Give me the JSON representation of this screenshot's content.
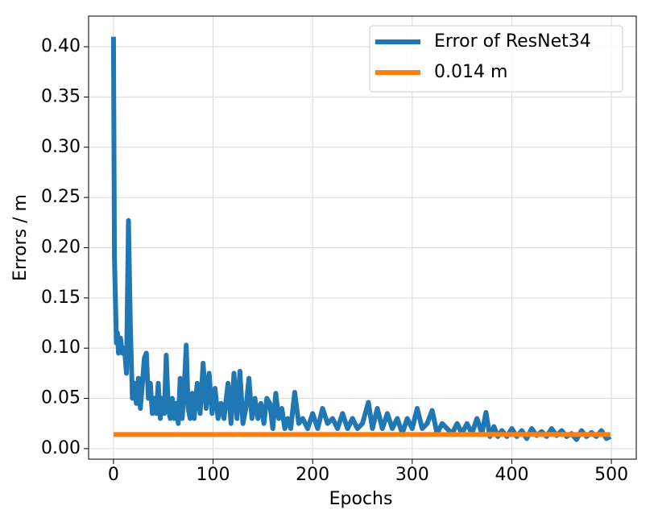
{
  "chart_data": {
    "type": "line",
    "xlabel": "Epochs",
    "ylabel": "Errors / m",
    "xlim": [
      -25,
      525
    ],
    "ylim": [
      -0.0105,
      0.4305
    ],
    "xticks": [
      0,
      100,
      200,
      300,
      400,
      500
    ],
    "yticks": [
      {
        "value": 0,
        "label": "0.00"
      },
      {
        "value": 0.05,
        "label": "0.05"
      },
      {
        "value": 0.1,
        "label": "0.10"
      },
      {
        "value": 0.15,
        "label": "0.15"
      },
      {
        "value": 0.2,
        "label": "0.20"
      },
      {
        "value": 0.25,
        "label": "0.25"
      },
      {
        "value": 0.3,
        "label": "0.30"
      },
      {
        "value": 0.35,
        "label": "0.35"
      },
      {
        "value": 0.4,
        "label": "0.40"
      }
    ],
    "grid": true,
    "legend": "upper right",
    "series": [
      {
        "name": "Error of ResNet34",
        "color": "#1f77b4",
        "x": [
          0,
          1,
          3,
          4,
          5,
          7,
          9,
          11,
          13,
          15,
          17,
          19,
          21,
          23,
          25,
          27,
          29,
          31,
          33,
          35,
          37,
          39,
          41,
          43,
          45,
          47,
          49,
          51,
          53,
          55,
          57,
          59,
          61,
          63,
          65,
          67,
          69,
          71,
          73,
          75,
          77,
          79,
          81,
          84,
          87,
          90,
          93,
          96,
          99,
          102,
          105,
          108,
          111,
          115,
          118,
          121,
          124,
          127,
          130,
          133,
          136,
          139,
          142,
          145,
          148,
          151,
          154,
          157,
          160,
          163,
          166,
          169,
          172,
          175,
          178,
          182,
          186,
          190,
          195,
          200,
          205,
          210,
          215,
          220,
          225,
          230,
          235,
          240,
          245,
          250,
          256,
          260,
          265,
          270,
          275,
          280,
          285,
          290,
          295,
          300,
          305,
          310,
          315,
          320,
          325,
          330,
          335,
          340,
          345,
          350,
          355,
          360,
          365,
          370,
          374,
          378,
          382,
          386,
          390,
          395,
          400,
          405,
          410,
          415,
          420,
          425,
          430,
          435,
          440,
          445,
          450,
          455,
          460,
          465,
          470,
          475,
          480,
          485,
          490,
          495,
          499
        ],
        "values": [
          0.41,
          0.19,
          0.105,
          0.115,
          0.095,
          0.11,
          0.095,
          0.1,
          0.075,
          0.227,
          0.12,
          0.05,
          0.065,
          0.045,
          0.07,
          0.04,
          0.065,
          0.09,
          0.095,
          0.05,
          0.065,
          0.035,
          0.05,
          0.035,
          0.065,
          0.03,
          0.05,
          0.035,
          0.093,
          0.04,
          0.03,
          0.05,
          0.03,
          0.045,
          0.025,
          0.07,
          0.03,
          0.06,
          0.103,
          0.04,
          0.03,
          0.055,
          0.03,
          0.065,
          0.035,
          0.085,
          0.04,
          0.075,
          0.035,
          0.06,
          0.03,
          0.045,
          0.03,
          0.065,
          0.025,
          0.075,
          0.03,
          0.077,
          0.025,
          0.04,
          0.07,
          0.03,
          0.05,
          0.03,
          0.045,
          0.025,
          0.05,
          0.045,
          0.02,
          0.055,
          0.03,
          0.04,
          0.02,
          0.03,
          0.02,
          0.056,
          0.025,
          0.03,
          0.02,
          0.035,
          0.02,
          0.04,
          0.025,
          0.03,
          0.02,
          0.035,
          0.02,
          0.03,
          0.02,
          0.025,
          0.046,
          0.02,
          0.04,
          0.02,
          0.035,
          0.02,
          0.03,
          0.015,
          0.03,
          0.02,
          0.04,
          0.02,
          0.025,
          0.038,
          0.015,
          0.025,
          0.02,
          0.015,
          0.025,
          0.015,
          0.025,
          0.015,
          0.03,
          0.015,
          0.036,
          0.012,
          0.022,
          0.012,
          0.018,
          0.012,
          0.02,
          0.012,
          0.018,
          0.01,
          0.02,
          0.013,
          0.017,
          0.012,
          0.02,
          0.013,
          0.018,
          0.012,
          0.015,
          0.009,
          0.018,
          0.012,
          0.016,
          0.012,
          0.018,
          0.01,
          0.012
        ]
      },
      {
        "name": "0.014 m",
        "color": "#ff7f0e",
        "x": [
          0,
          499
        ],
        "values": [
          0.014,
          0.014
        ]
      }
    ]
  }
}
